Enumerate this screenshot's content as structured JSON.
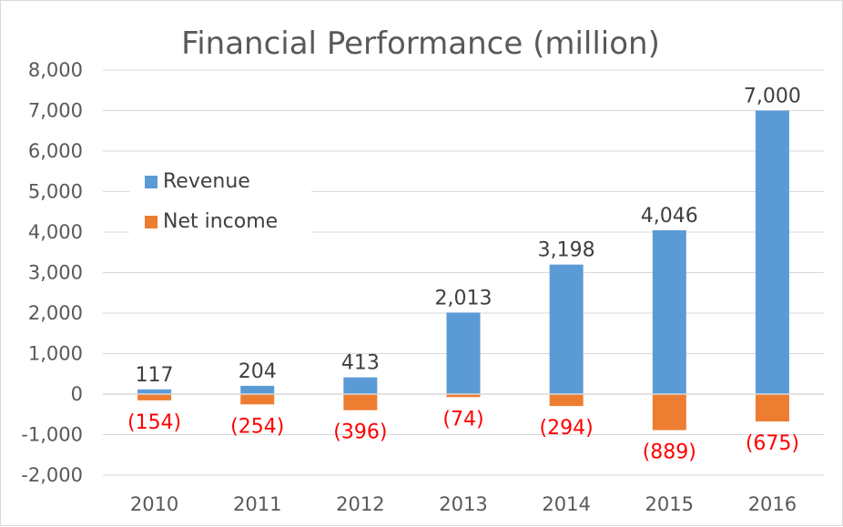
{
  "chart_data": {
    "type": "bar",
    "title": "Financial Performance (million)",
    "categories": [
      "2010",
      "2011",
      "2012",
      "2013",
      "2014",
      "2015",
      "2016"
    ],
    "series": [
      {
        "name": "Revenue",
        "color": "#5b9bd5",
        "values": [
          117,
          204,
          413,
          2013,
          3198,
          4046,
          7000
        ],
        "labels": [
          "117",
          "204",
          "413",
          "2,013",
          "3,198",
          "4,046",
          "7,000"
        ]
      },
      {
        "name": "Net income",
        "color": "#ed7d31",
        "values": [
          -154,
          -254,
          -396,
          -74,
          -294,
          -889,
          -675
        ],
        "labels": [
          "(154)",
          "(254)",
          "(396)",
          "(74)",
          "(294)",
          "(889)",
          "(675)"
        ]
      }
    ],
    "stacked": true,
    "ylim": [
      -2000,
      8000
    ],
    "yticks": [
      8000,
      7000,
      6000,
      5000,
      4000,
      3000,
      2000,
      1000,
      0,
      -1000,
      -2000
    ],
    "ytick_labels": [
      "8,000",
      "7,000",
      "6,000",
      "5,000",
      "4,000",
      "3,000",
      "2,000",
      "1,000",
      "0",
      "-1,000",
      "-2,000"
    ],
    "grid": true,
    "legend_position": "upper-left",
    "negative_label_color": "#ff0000"
  }
}
